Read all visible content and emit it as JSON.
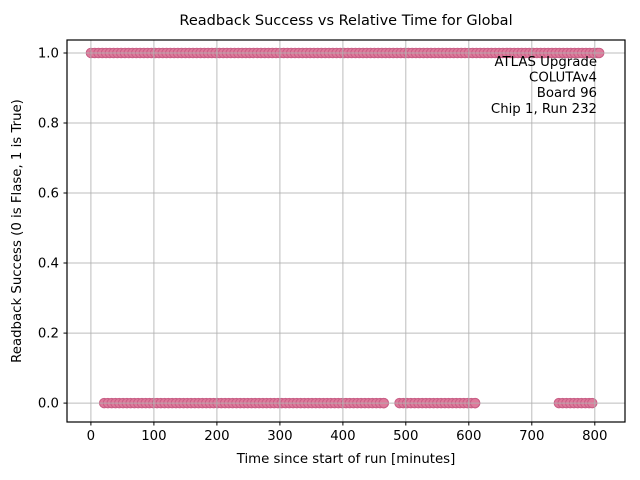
{
  "chart_data": {
    "type": "scatter",
    "title": "Readback Success vs Relative Time for Global",
    "xlabel": "Time since start of run [minutes]",
    "ylabel": "Readback Success (0 is Flase, 1 is True)",
    "xlim": [
      -38,
      848
    ],
    "ylim": [
      -0.054,
      1.037
    ],
    "xticks": [
      0,
      100,
      200,
      300,
      400,
      500,
      600,
      700,
      800
    ],
    "yticks": [
      0.0,
      0.2,
      0.4,
      0.6,
      0.8,
      1.0
    ],
    "grid": true,
    "legend_position": "none",
    "annotation": {
      "lines": [
        "ATLAS Upgrade",
        "COLUTAv4",
        "Board 96",
        "Chip 1, Run 232"
      ],
      "align": "right"
    },
    "series": [
      {
        "name": "readback-success-true",
        "y_value": 1,
        "segments_minutes": [
          [
            0,
            807
          ]
        ],
        "sample_step_minutes": 6
      },
      {
        "name": "readback-success-false",
        "y_value": 0,
        "segments_minutes": [
          [
            21,
            465
          ],
          [
            490,
            610
          ],
          [
            743,
            796
          ]
        ],
        "sample_step_minutes": 6
      }
    ],
    "colors": {
      "marker_fill": "#DE7A9B",
      "marker_edge": "#C95F86",
      "grid": "#B0B0B0",
      "spine": "#000000",
      "text": "#000000",
      "background": "#FFFFFF"
    },
    "marker_radius_px": 4.7
  },
  "layout_labels": {
    "y_tick_format_decimals": 1
  }
}
